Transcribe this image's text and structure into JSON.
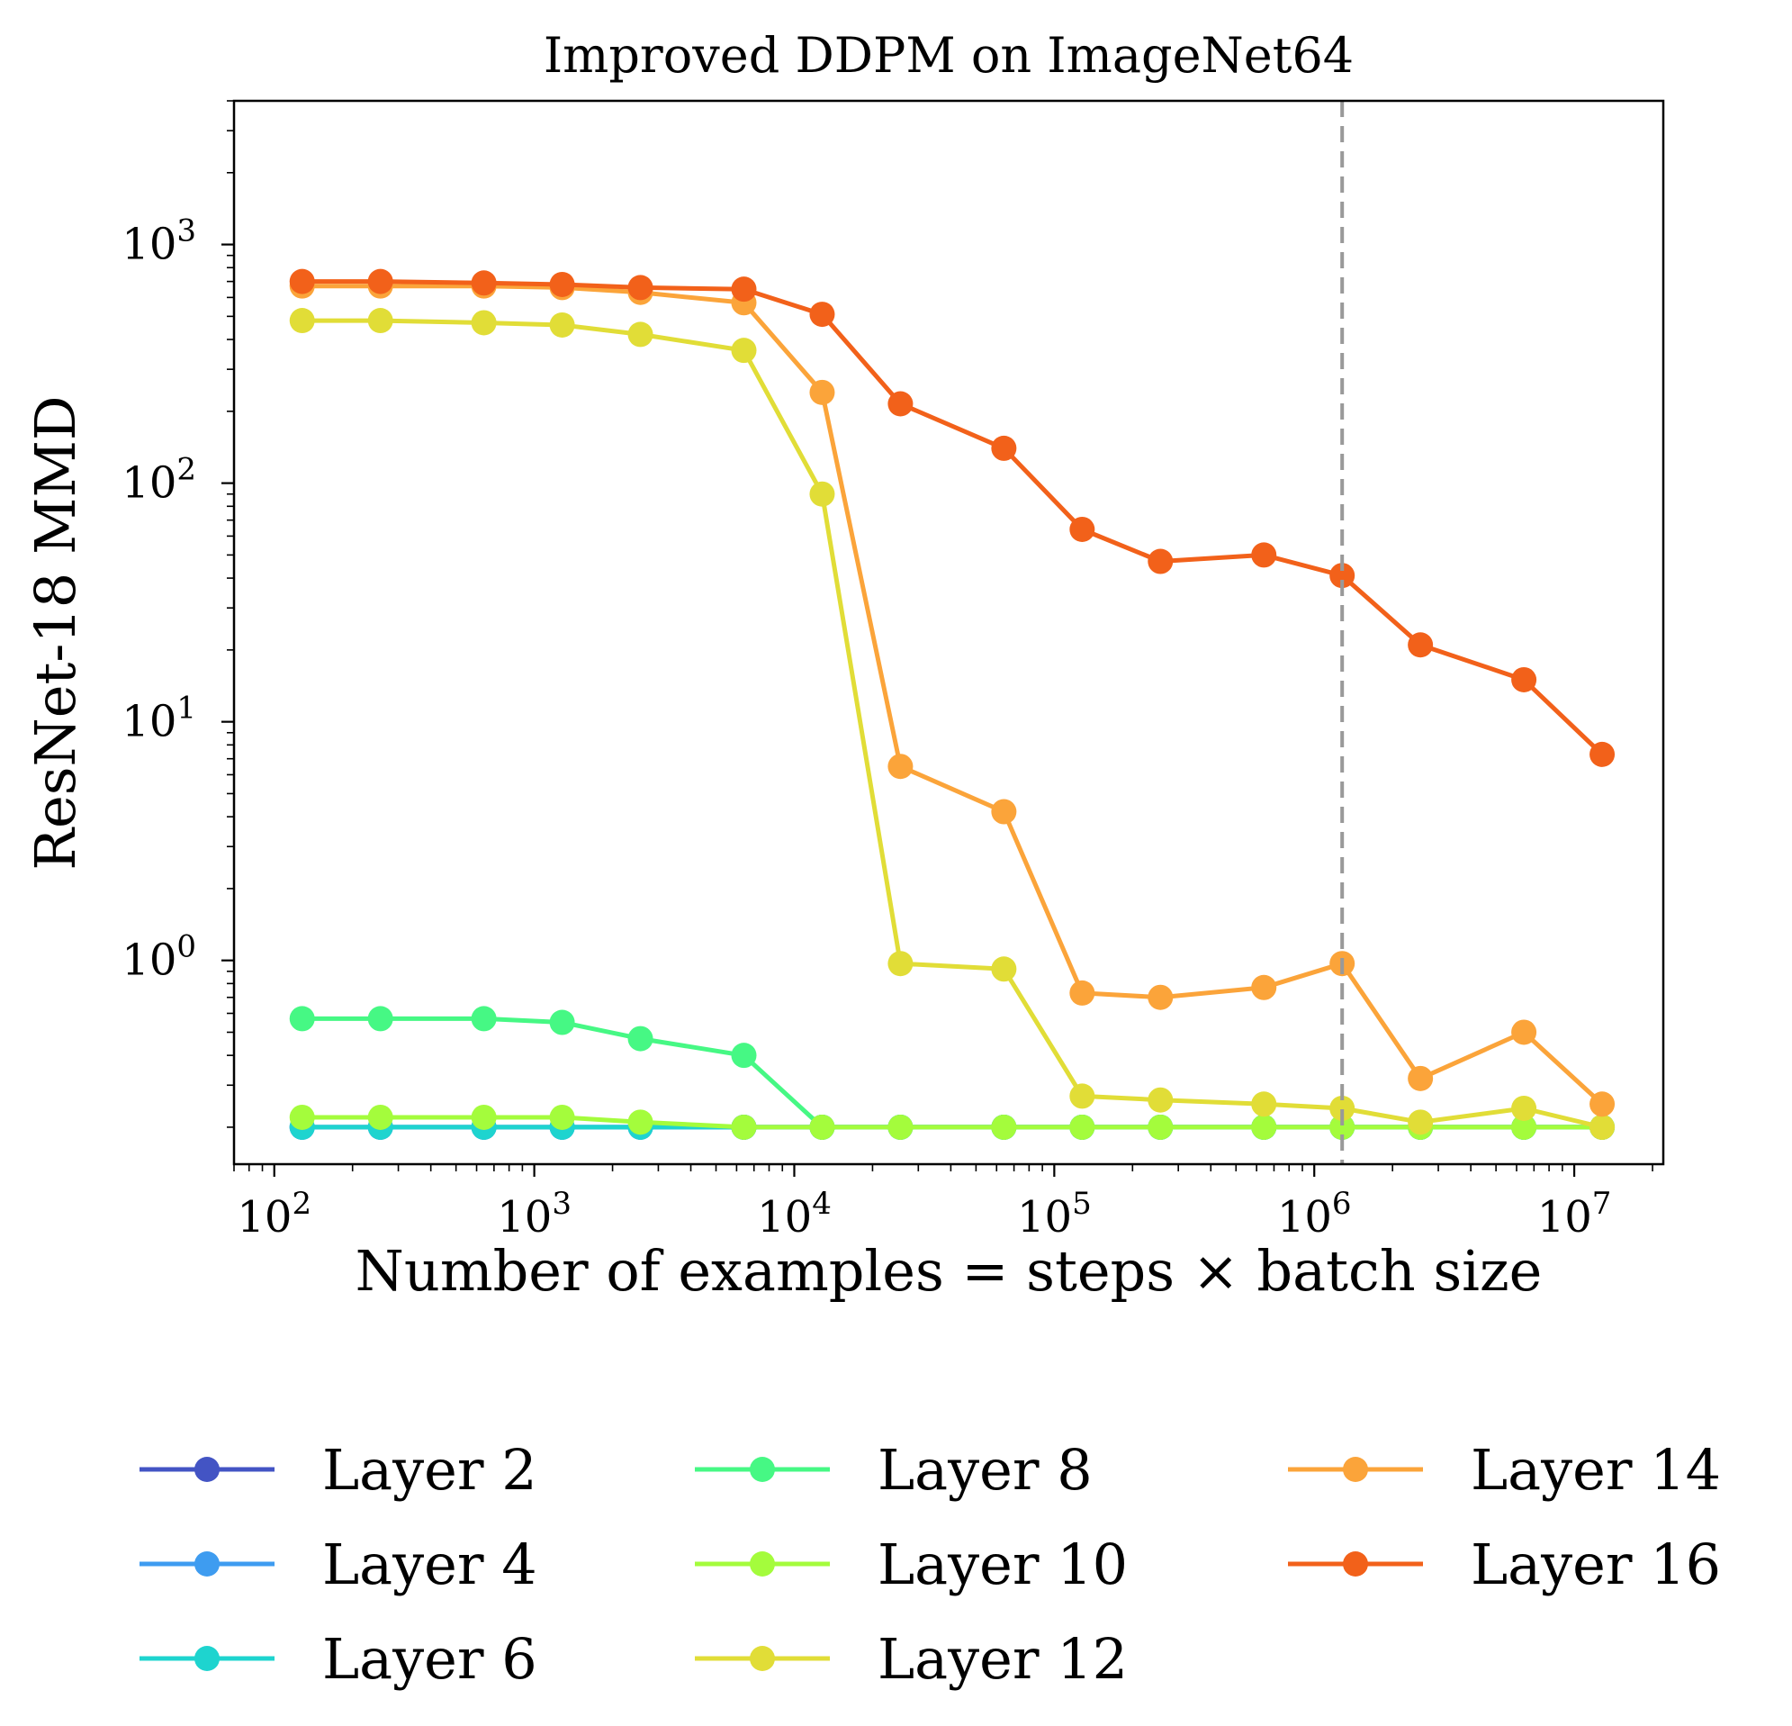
{
  "chart_data": {
    "type": "line",
    "title": "Improved DDPM on ImageNet64",
    "xlabel": "Number of examples = steps × batch size",
    "ylabel": "ResNet-18 MMD",
    "xscale": "log",
    "yscale": "log",
    "xlim": [
      70,
      22000000
    ],
    "ylim": [
      0.14,
      4000
    ],
    "xtick_labels": [
      {
        "value": 100,
        "base": "10",
        "exp": "2"
      },
      {
        "value": 1000,
        "base": "10",
        "exp": "3"
      },
      {
        "value": 10000,
        "base": "10",
        "exp": "4"
      },
      {
        "value": 100000,
        "base": "10",
        "exp": "5"
      },
      {
        "value": 1000000,
        "base": "10",
        "exp": "6"
      },
      {
        "value": 10000000,
        "base": "10",
        "exp": "7"
      }
    ],
    "ytick_labels": [
      {
        "value": 1,
        "base": "10",
        "exp": "0"
      },
      {
        "value": 10,
        "base": "10",
        "exp": "1"
      },
      {
        "value": 100,
        "base": "10",
        "exp": "2"
      },
      {
        "value": 1000,
        "base": "10",
        "exp": "3"
      }
    ],
    "vline": {
      "x": 1280000,
      "color": "#999999",
      "style": "dashed"
    },
    "x": [
      128,
      256,
      640,
      1280,
      2560,
      6400,
      12800,
      25600,
      64000,
      128000,
      256000,
      640000,
      1280000,
      2560000,
      6400000,
      12800000
    ],
    "series": [
      {
        "name": "Layer 2",
        "color": "#4354c4",
        "values": [
          0.2,
          0.2,
          0.2,
          0.2,
          0.2,
          0.2,
          0.2,
          0.2,
          0.2,
          0.2,
          0.2,
          0.2,
          0.2,
          0.2,
          0.2,
          0.2
        ]
      },
      {
        "name": "Layer 4",
        "color": "#3e9cf0",
        "values": [
          0.2,
          0.2,
          0.2,
          0.2,
          0.2,
          0.2,
          0.2,
          0.2,
          0.2,
          0.2,
          0.2,
          0.2,
          0.2,
          0.2,
          0.2,
          0.2
        ]
      },
      {
        "name": "Layer 6",
        "color": "#1ed4cf",
        "values": [
          0.2,
          0.2,
          0.2,
          0.2,
          0.2,
          0.2,
          0.2,
          0.2,
          0.2,
          0.2,
          0.2,
          0.2,
          0.2,
          0.2,
          0.2,
          0.2
        ]
      },
      {
        "name": "Layer 8",
        "color": "#46f884",
        "values": [
          0.57,
          0.57,
          0.57,
          0.55,
          0.47,
          0.4,
          0.2,
          0.2,
          0.2,
          0.2,
          0.2,
          0.2,
          0.2,
          0.2,
          0.2,
          0.2
        ]
      },
      {
        "name": "Layer 10",
        "color": "#a4fc3c",
        "values": [
          0.22,
          0.22,
          0.22,
          0.22,
          0.21,
          0.2,
          0.2,
          0.2,
          0.2,
          0.2,
          0.2,
          0.2,
          0.2,
          0.2,
          0.2,
          0.2
        ]
      },
      {
        "name": "Layer 12",
        "color": "#e1dd37",
        "values": [
          480,
          480,
          470,
          460,
          420,
          360,
          90,
          0.97,
          0.92,
          0.27,
          0.26,
          0.25,
          0.24,
          0.21,
          0.24,
          0.2
        ]
      },
      {
        "name": "Layer 14",
        "color": "#fba43a",
        "values": [
          670,
          670,
          670,
          660,
          630,
          570,
          240,
          6.5,
          4.2,
          0.73,
          0.7,
          0.77,
          0.97,
          0.32,
          0.5,
          0.25
        ]
      },
      {
        "name": "Layer 16",
        "color": "#f2611a",
        "values": [
          700,
          700,
          690,
          680,
          660,
          650,
          510,
          215,
          140,
          64,
          47,
          50,
          41,
          21,
          15,
          7.3
        ]
      }
    ],
    "legend_position": "bottom"
  }
}
